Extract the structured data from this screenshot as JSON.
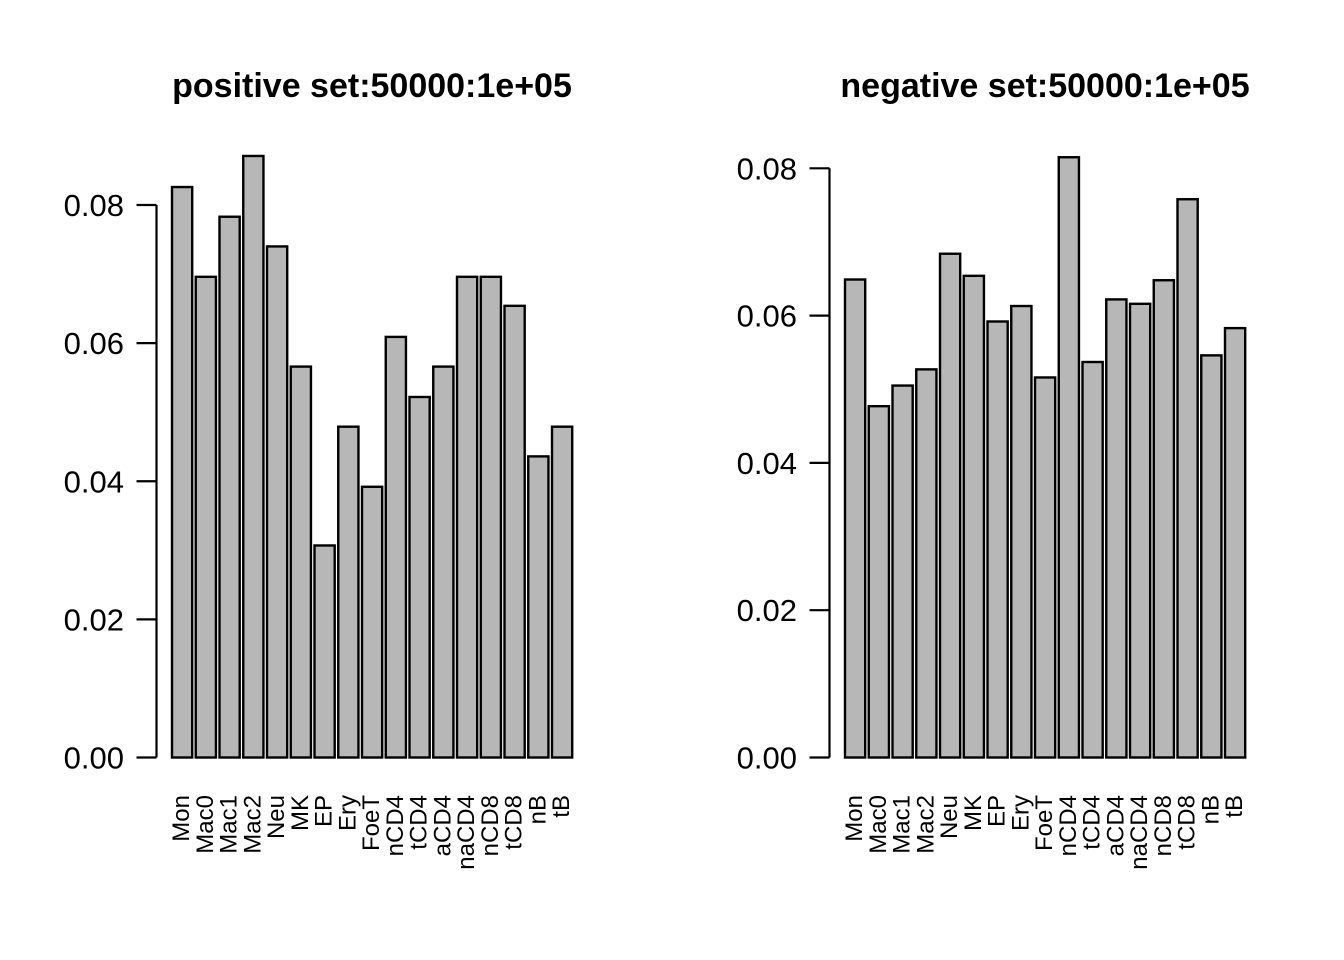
{
  "page": {
    "background": "#ffffff",
    "description_left_panel": "positive set barplot",
    "description_right_panel": "negative set barplot"
  },
  "chart_data": [
    {
      "type": "bar",
      "title": "positive set:50000:1e+05",
      "categories": [
        "Mon",
        "Mac0",
        "Mac1",
        "Mac2",
        "Neu",
        "MK",
        "EP",
        "Ery",
        "FoeT",
        "nCD4",
        "tCD4",
        "aCD4",
        "naCD4",
        "nCD8",
        "tCD8",
        "nB",
        "tB"
      ],
      "values": [
        0.0826,
        0.0696,
        0.0783,
        0.0871,
        0.074,
        0.0566,
        0.0307,
        0.0479,
        0.0392,
        0.0609,
        0.0522,
        0.0566,
        0.0696,
        0.0696,
        0.0654,
        0.0436,
        0.0479
      ],
      "xlabel": "",
      "ylabel": "",
      "ylim": [
        0,
        0.089
      ],
      "yticks": [
        "0.00",
        "0.02",
        "0.04",
        "0.06",
        "0.08"
      ],
      "ytick_values": [
        0,
        0.02,
        0.04,
        0.06,
        0.08
      ],
      "grid": false,
      "legend": "none",
      "bar_color": "#B7B7B7",
      "bar_border_color": "#000000",
      "x_labels_rotated_degrees": -90
    },
    {
      "type": "bar",
      "title": "negative set:50000:1e+05",
      "categories": [
        "Mon",
        "Mac0",
        "Mac1",
        "Mac2",
        "Neu",
        "MK",
        "EP",
        "Ery",
        "FoeT",
        "nCD4",
        "tCD4",
        "aCD4",
        "naCD4",
        "nCD8",
        "tCD8",
        "nB",
        "tB"
      ],
      "values": [
        0.0649,
        0.0477,
        0.0505,
        0.0527,
        0.0684,
        0.0654,
        0.0592,
        0.0613,
        0.0516,
        0.0815,
        0.0537,
        0.0622,
        0.0616,
        0.0648,
        0.0758,
        0.0546,
        0.0583
      ],
      "xlabel": "",
      "ylabel": "",
      "ylim": [
        0,
        0.084
      ],
      "yticks": [
        "0.00",
        "0.02",
        "0.04",
        "0.06",
        "0.08"
      ],
      "ytick_values": [
        0,
        0.02,
        0.04,
        0.06,
        0.08
      ],
      "grid": false,
      "legend": "none",
      "bar_color": "#B7B7B7",
      "bar_border_color": "#000000",
      "x_labels_rotated_degrees": -90
    }
  ]
}
